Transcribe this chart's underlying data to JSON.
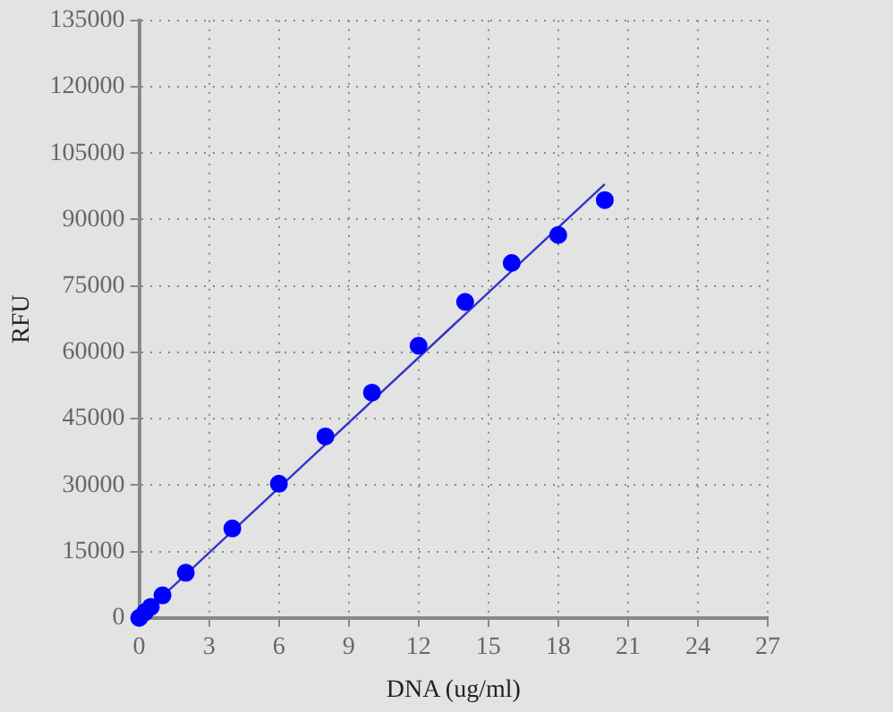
{
  "chart_data": {
    "type": "scatter",
    "xlabel": "DNA (ug/ml)",
    "ylabel": "RFU",
    "xlim": [
      0,
      27
    ],
    "xticks": [
      0,
      3,
      6,
      9,
      12,
      15,
      18,
      21,
      24,
      27
    ],
    "ylim": [
      0,
      135000
    ],
    "yticks": [
      0,
      15000,
      30000,
      45000,
      60000,
      75000,
      90000,
      105000,
      120000,
      135000
    ],
    "grid": true,
    "marker": "circle",
    "series": [
      {
        "type": "scatter",
        "color": "#0000ff",
        "x": [
          0,
          0.25,
          0.5,
          1,
          2,
          4,
          6,
          8,
          10,
          12,
          14,
          16,
          18,
          20
        ],
        "values": [
          0,
          1300,
          2500,
          5100,
          10200,
          20200,
          30300,
          41000,
          50900,
          61500,
          71400,
          80200,
          86500,
          94400
        ]
      },
      {
        "type": "line",
        "color": "#3333cc",
        "marker": "none",
        "x": [
          0,
          20
        ],
        "values": [
          0,
          98000
        ]
      }
    ]
  }
}
